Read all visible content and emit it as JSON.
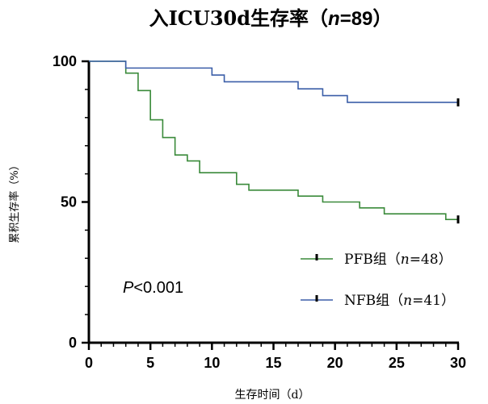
{
  "chart_data": {
    "type": "line",
    "subtype": "kaplan-meier",
    "title_prefix": "入ICU30d生存率（",
    "title_n": "n",
    "title_value": "=89",
    "title_suffix": "）",
    "xlabel": "生存时间（d）",
    "ylabel": "累积生存率（%）",
    "xlim": [
      0,
      30
    ],
    "ylim": [
      0,
      100
    ],
    "xticks": [
      0,
      5,
      10,
      15,
      20,
      25,
      30
    ],
    "yticks": [
      0,
      50,
      100
    ],
    "annotation": {
      "italic": "P",
      "text": "<0.001"
    },
    "series": [
      {
        "name": "PFB组",
        "legend_prefix": "PFB组（",
        "legend_italic": "n",
        "legend_value": "=48）",
        "color": "#3a8a3a",
        "x": [
          0,
          3,
          4,
          5,
          6,
          7,
          8,
          9,
          12,
          13,
          17,
          19,
          22,
          24,
          29,
          30
        ],
        "y": [
          100,
          95.8,
          89.6,
          79.2,
          72.9,
          66.7,
          64.6,
          60.4,
          56.3,
          54.2,
          52.1,
          50.0,
          47.9,
          45.8,
          43.8,
          43.8
        ],
        "censor": [
          {
            "x": 30,
            "y": 43.8
          }
        ]
      },
      {
        "name": "NFB组",
        "legend_prefix": "NFB组（",
        "legend_italic": "n",
        "legend_value": "=41）",
        "color": "#3b5ea8",
        "x": [
          0,
          3,
          10,
          11,
          17,
          19,
          21,
          30
        ],
        "y": [
          100,
          97.6,
          95.1,
          92.7,
          90.2,
          87.8,
          85.4,
          85.4
        ],
        "censor": [
          {
            "x": 30,
            "y": 85.4
          }
        ]
      }
    ]
  }
}
